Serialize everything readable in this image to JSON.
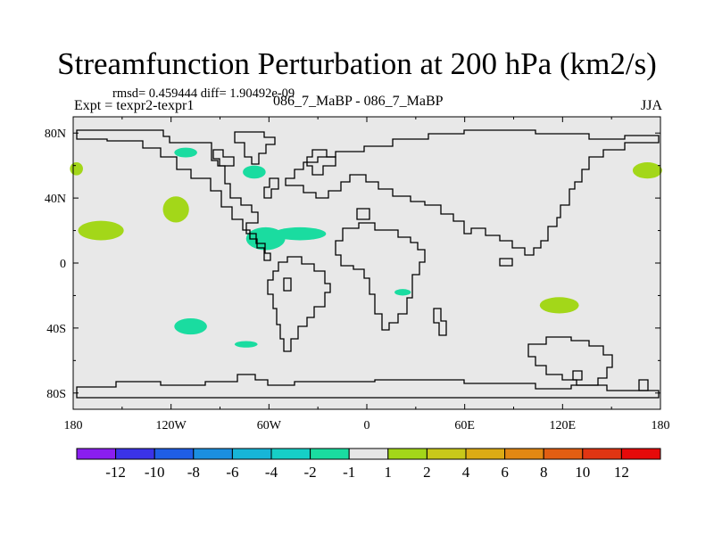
{
  "title": "Streamfunction Perturbation at 200 hPa (km2/s)",
  "stats": "rmsd= 0.459444 diff= 1.90492e-09",
  "experiment": "Expt = texpr2-texpr1",
  "cases": "086_7_MaBP - 086_7_MaBP",
  "season": "JJA",
  "colors": {
    "ocean_bg": "#e8e8e8",
    "positive": "#a3d719",
    "negative": "#1adca0",
    "coast": "#000000"
  },
  "chart_data": {
    "type": "heatmap",
    "projection": "cylindrical-equidistant",
    "xlim": [
      -180,
      180
    ],
    "ylim": [
      -90,
      90
    ],
    "x_ticks": [
      -180,
      -120,
      -60,
      0,
      60,
      120,
      180
    ],
    "x_tick_labels": [
      "180",
      "120W",
      "60W",
      "0",
      "60E",
      "120E",
      "180"
    ],
    "y_ticks": [
      80,
      40,
      0,
      -40,
      -80
    ],
    "y_tick_labels": [
      "80N",
      "40N",
      "0",
      "40S",
      "80S"
    ],
    "levels": [
      -12,
      -10,
      -8,
      -6,
      -4,
      -2,
      -1,
      1,
      2,
      4,
      6,
      8,
      10,
      12
    ],
    "colorbar_labels": [
      "-12",
      "-10",
      "-8",
      "-6",
      "-4",
      "-2",
      "-1",
      "1",
      "2",
      "4",
      "6",
      "8",
      "10",
      "12"
    ],
    "colorbar_colors": [
      "#8a1ef0",
      "#3b33e8",
      "#1f5ee6",
      "#1b8fe0",
      "#17b5d8",
      "#16cfc7",
      "#1adca0",
      "#e6e6e6",
      "#a3d719",
      "#c8c81a",
      "#dcab14",
      "#e28813",
      "#e25e12",
      "#e03513",
      "#e60a0a"
    ],
    "features": [
      {
        "sign": "positive",
        "lon": -178,
        "lat": 58,
        "rlon": 4,
        "rlat": 4
      },
      {
        "sign": "positive",
        "lon": 172,
        "lat": 57,
        "rlon": 9,
        "rlat": 5
      },
      {
        "sign": "positive",
        "lon": -163,
        "lat": 20,
        "rlon": 14,
        "rlat": 6
      },
      {
        "sign": "positive",
        "lon": -117,
        "lat": 33,
        "rlon": 8,
        "rlat": 8
      },
      {
        "sign": "positive",
        "lon": 118,
        "lat": -26,
        "rlon": 12,
        "rlat": 5
      },
      {
        "sign": "negative",
        "lon": -111,
        "lat": 68,
        "rlon": 7,
        "rlat": 3
      },
      {
        "sign": "negative",
        "lon": -69,
        "lat": 56,
        "rlon": 7,
        "rlat": 4
      },
      {
        "sign": "negative",
        "lon": -62,
        "lat": 15,
        "rlon": 12,
        "rlat": 7
      },
      {
        "sign": "negative",
        "lon": -41,
        "lat": 18,
        "rlon": 16,
        "rlat": 4
      },
      {
        "sign": "negative",
        "lon": -108,
        "lat": -39,
        "rlon": 10,
        "rlat": 5
      },
      {
        "sign": "negative",
        "lon": -74,
        "lat": -50,
        "rlon": 7,
        "rlat": 2
      },
      {
        "sign": "negative",
        "lon": 22,
        "lat": -18,
        "rlon": 5,
        "rlat": 2
      }
    ]
  }
}
